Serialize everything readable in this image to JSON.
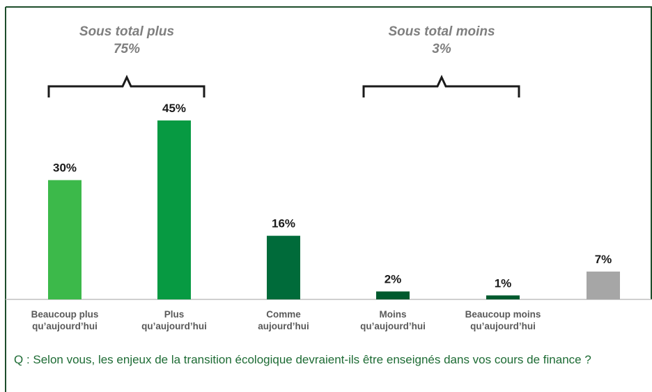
{
  "chart_data": {
    "type": "bar",
    "categories": [
      "Beaucoup plus\nqu’aujourd’hui",
      "Plus\nqu’aujourd’hui",
      "Comme\naujourd’hui",
      "Moins\nqu’aujourd’hui",
      "Beaucoup moins\nqu’aujourd’hui",
      null
    ],
    "values": [
      30,
      45,
      16,
      2,
      1,
      7
    ],
    "value_labels": [
      "30%",
      "45%",
      "16%",
      "2%",
      "1%",
      "7%"
    ],
    "colors": [
      "#3cb94a",
      "#079a42",
      "#006b3a",
      "#005a2e",
      "#005a2e",
      "#a6a6a6"
    ],
    "annotations": [
      {
        "text": "Sous total plus",
        "value_label": "75%"
      },
      {
        "text": "Sous total moins",
        "value_label": "3%"
      }
    ],
    "question": "Q : Selon vous, les enjeux de la transition écologique devraient-ils être enseignés dans vos cours de finance ?"
  }
}
